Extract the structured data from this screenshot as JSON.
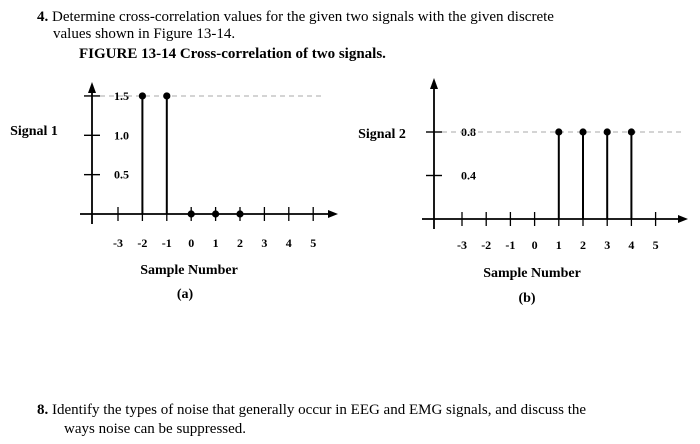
{
  "question4": {
    "number": "4.",
    "line1": "Determine cross-correlation values for the given two signals with the given discrete",
    "line2": "values shown in Figure 13-14."
  },
  "figure_caption": "FIGURE 13-14 Cross-correlation of two signals.",
  "question8": {
    "number": "8.",
    "line1": "Identify the types of noise that generally occur in EEG and EMG signals, and discuss the",
    "line2": "ways noise can be suppressed."
  },
  "chart_data": [
    {
      "type": "stem",
      "panel": "(a)",
      "ylabel": "Signal 1",
      "xlabel": "Sample Number",
      "x_ticks": [
        -3,
        -2,
        -1,
        0,
        1,
        2,
        3,
        4,
        5
      ],
      "x_tick_labels": [
        "-3",
        "-2",
        "-1",
        "0",
        "1",
        "2",
        "3",
        "4",
        "5"
      ],
      "y_ticks": [
        0.5,
        1.0,
        1.5
      ],
      "y_tick_labels": [
        "0.5",
        "1.0",
        "1.5"
      ],
      "x": [
        -2,
        -1,
        0,
        1,
        2
      ],
      "y": [
        1.5,
        1.5,
        0,
        0,
        0
      ],
      "dashed_reference": 1.5
    },
    {
      "type": "stem",
      "panel": "(b)",
      "ylabel": "Signal 2",
      "xlabel": "Sample Number",
      "x_ticks": [
        -3,
        -2,
        -1,
        0,
        1,
        2,
        3,
        4,
        5
      ],
      "x_tick_labels": [
        "-3",
        "-2",
        "-1",
        "0",
        "1",
        "2",
        "3",
        "4",
        "5"
      ],
      "y_ticks": [
        0.4,
        0.8
      ],
      "y_tick_labels": [
        "0.4",
        "0.8"
      ],
      "x": [
        1,
        2,
        3,
        4
      ],
      "y": [
        0.8,
        0.8,
        0.8,
        0.8
      ],
      "dashed_reference": 0.8
    }
  ]
}
